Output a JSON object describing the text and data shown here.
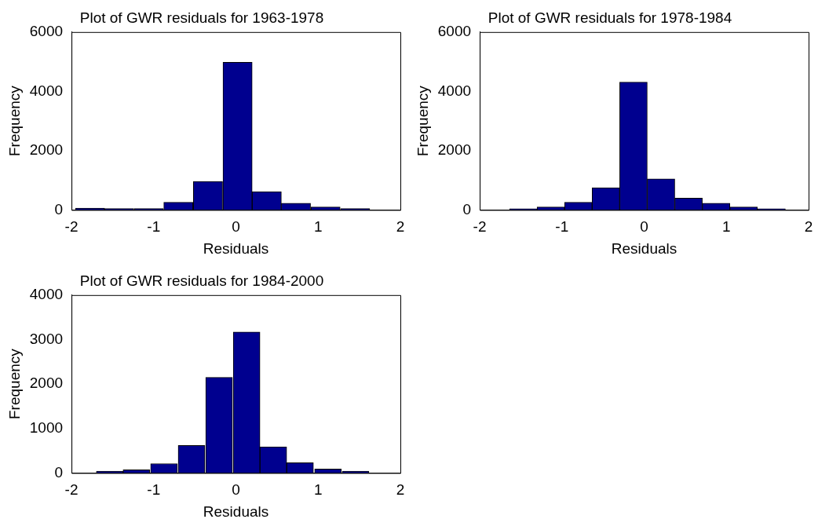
{
  "chart_data": [
    {
      "type": "histogram",
      "title": "Plot of GWR residuals for 1963-1978",
      "xlabel": "Residuals",
      "ylabel": "Frequency",
      "color": "#00008f",
      "bins": [
        -1.95,
        -1.6,
        -1.24,
        -0.88,
        -0.52,
        -0.16,
        0.2,
        0.55,
        0.91,
        1.27,
        1.63
      ],
      "values": [
        60,
        50,
        50,
        260,
        960,
        4980,
        620,
        230,
        100,
        50
      ],
      "xlim": [
        -2,
        2
      ],
      "xticks": [
        -2,
        -1,
        0,
        1,
        2
      ],
      "ylim": [
        0,
        6000
      ],
      "yticks": [
        0,
        2000,
        4000,
        6000
      ]
    },
    {
      "type": "histogram",
      "title": "Plot of GWR residuals for 1978-1984",
      "xlabel": "Residuals",
      "ylabel": "Frequency",
      "color": "#00008f",
      "bins": [
        -1.64,
        -1.3,
        -0.97,
        -0.63,
        -0.3,
        0.04,
        0.37,
        0.71,
        1.04,
        1.38,
        1.72
      ],
      "values": [
        40,
        100,
        260,
        750,
        4310,
        1050,
        400,
        230,
        100,
        40
      ],
      "xlim": [
        -2,
        2
      ],
      "xticks": [
        -2,
        -1,
        0,
        1,
        2
      ],
      "ylim": [
        0,
        6000
      ],
      "yticks": [
        0,
        2000,
        4000,
        6000
      ]
    },
    {
      "type": "histogram",
      "title": "Plot of GWR residuals for 1984-2000",
      "xlabel": "Residuals",
      "ylabel": "Frequency",
      "color": "#00008f",
      "bins": [
        -1.69,
        -1.38,
        -1.04,
        -0.71,
        -0.37,
        -0.04,
        0.3,
        0.61,
        0.95,
        1.29,
        1.62
      ],
      "values": [
        40,
        70,
        210,
        620,
        2150,
        3170,
        590,
        230,
        90,
        40
      ],
      "xlim": [
        -2,
        2
      ],
      "xticks": [
        -2,
        -1,
        0,
        1,
        2
      ],
      "ylim": [
        0,
        4000
      ],
      "yticks": [
        0,
        1000,
        2000,
        3000,
        4000
      ]
    }
  ]
}
